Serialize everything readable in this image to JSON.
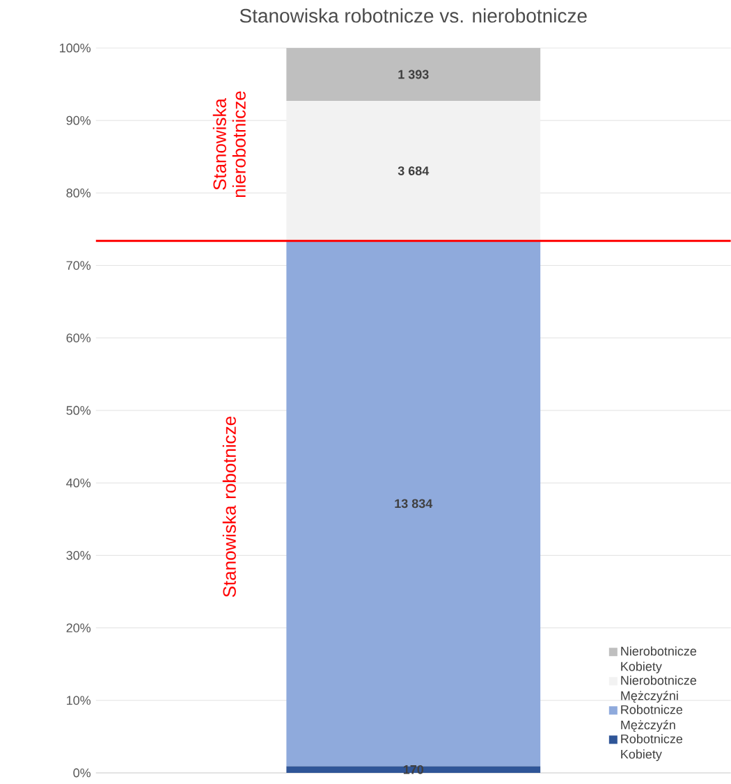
{
  "chart_data": {
    "type": "bar",
    "title": "Stanowiska robotnicze vs. nierobotnicze",
    "categories": [
      null
    ],
    "stacked": true,
    "series": [
      {
        "name": "Robotnicze Kobiety",
        "color": "#2f5597",
        "values": [
          0.9
        ]
      },
      {
        "name": "Robotnicze Mężczyźn",
        "color": "#8faadc",
        "values": [
          72.5
        ]
      },
      {
        "name": "Nierobotnicze Mężczyźni",
        "color": "#f2f2f2",
        "values": [
          19.3
        ]
      },
      {
        "name": "Nierobotnicze Kobiety",
        "color": "#bfbfbf",
        "values": [
          7.3
        ]
      }
    ],
    "ylim": [
      0,
      100
    ],
    "yticks": [
      {
        "value": 0,
        "label": "0%"
      },
      {
        "value": 10,
        "label": "10%"
      },
      {
        "value": 20,
        "label": "20%"
      },
      {
        "value": 30,
        "label": "30%"
      },
      {
        "value": 40,
        "label": "40%"
      },
      {
        "value": 50,
        "label": "50%"
      },
      {
        "value": 60,
        "label": "60%"
      },
      {
        "value": 70,
        "label": "70%"
      },
      {
        "value": 80,
        "label": "80%"
      },
      {
        "value": 90,
        "label": "90%"
      },
      {
        "value": 100,
        "label": "100%"
      }
    ],
    "grid": "y",
    "legend": "bottom right",
    "ref_lines": [
      {
        "axis": "y",
        "value": 73.4,
        "color": "#ff0000"
      }
    ],
    "annotations": [
      "Stanowiska nierobotnicze",
      "Stanowiska robotnicze",
      "170",
      "13 834",
      "3 684",
      "1 393"
    ]
  }
}
